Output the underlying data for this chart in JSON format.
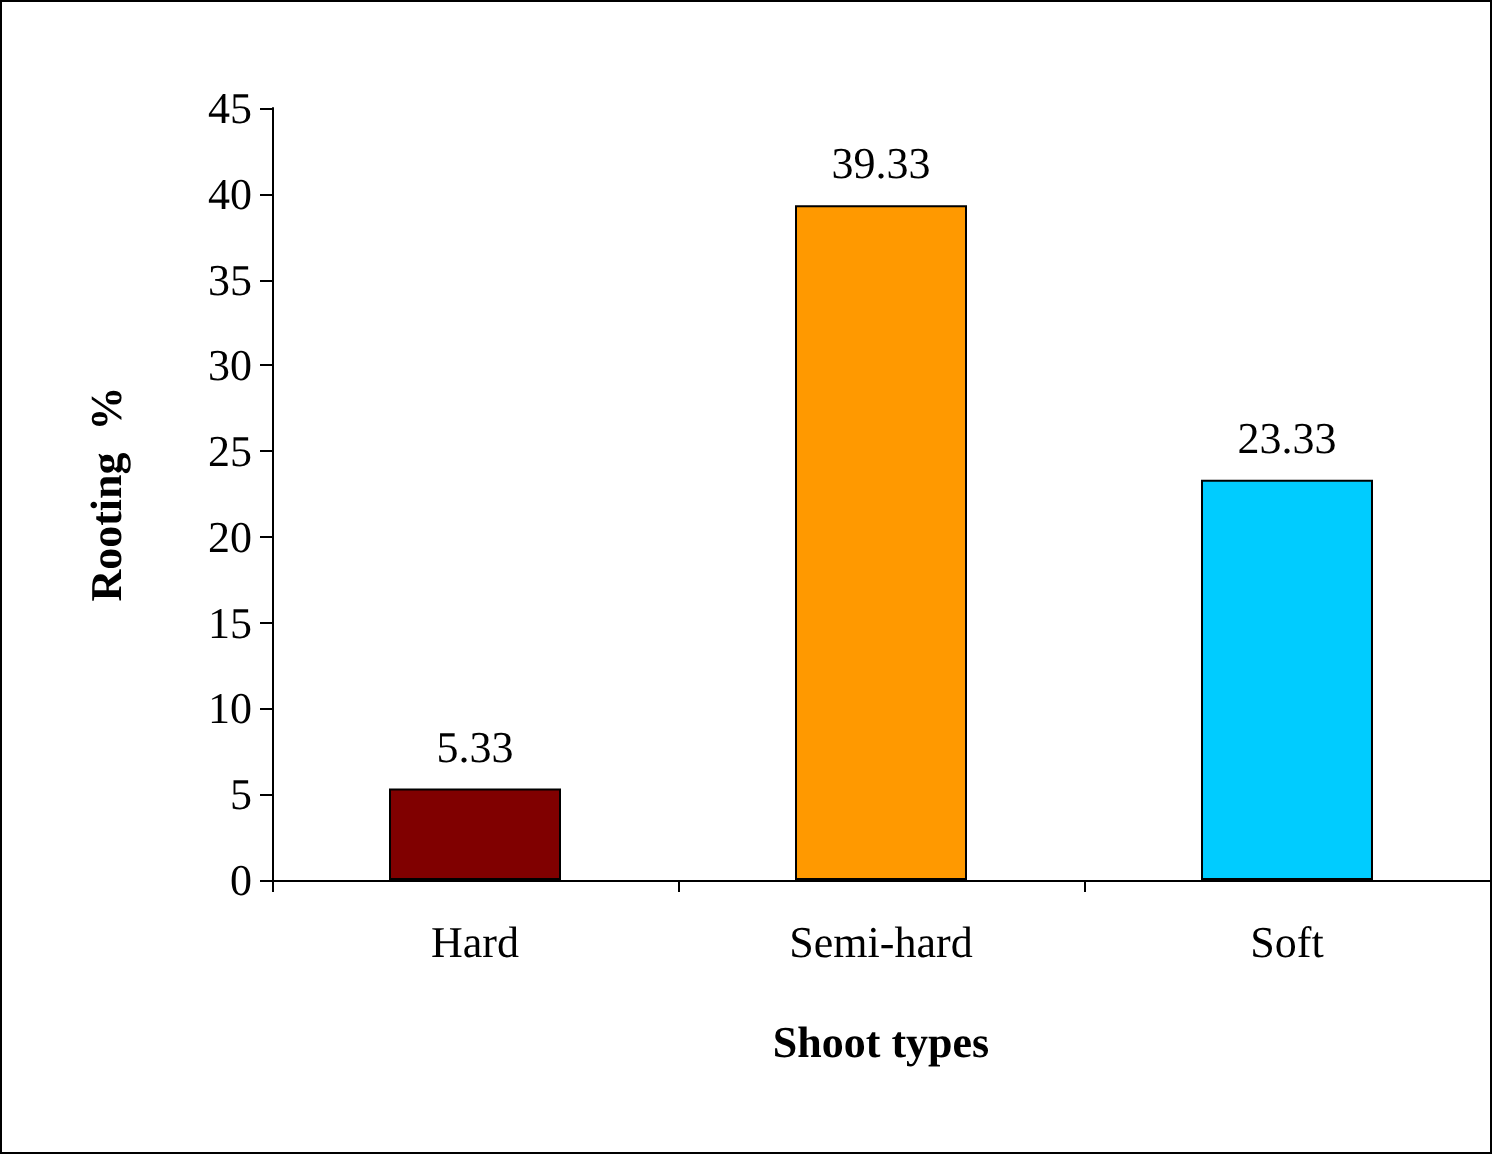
{
  "chart_data": {
    "type": "bar",
    "xlabel": "Shoot types",
    "ylabel": "Rooting  %",
    "categories": [
      "Hard",
      "Semi-hard",
      "Soft"
    ],
    "values": [
      5.33,
      39.33,
      23.33
    ],
    "colors": [
      "#800000",
      "#ff9900",
      "#00ccff"
    ],
    "ylim": [
      0,
      45
    ],
    "yticks": [
      0,
      5,
      10,
      15,
      20,
      25,
      30,
      35,
      40,
      45
    ],
    "grid": false,
    "data_labels": true
  }
}
